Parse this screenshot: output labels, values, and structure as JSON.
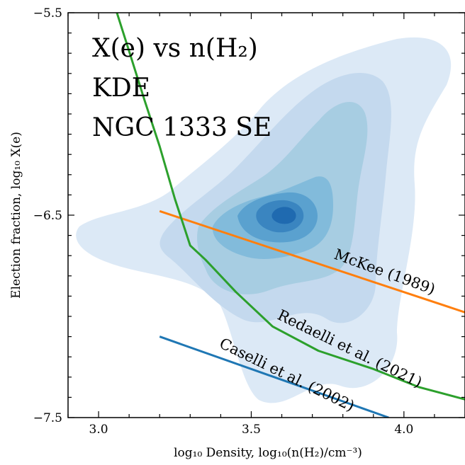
{
  "chart_data": {
    "type": "line",
    "xlabel": "log₁₀ Density, log₁₀(n(H₂)/cm⁻³)",
    "ylabel": "Election fraction, log₁₀ X(e)",
    "xlim": [
      2.9,
      4.2
    ],
    "ylim": [
      -7.5,
      -5.5
    ],
    "x_ticks": [
      3.0,
      3.5,
      4.0
    ],
    "x_tick_labels": [
      "3.0",
      "3.5",
      "4.0"
    ],
    "y_ticks": [
      -5.5,
      -6.5,
      -7.5
    ],
    "y_tick_labels": [
      "−5.5",
      "−6.5",
      "−7.5"
    ],
    "grid": false,
    "annotations": [
      "X(e) vs n(H₂)",
      "KDE",
      "NGC 1333 SE"
    ],
    "series": [
      {
        "name": "McKee (1989)",
        "color": "#ff7f0e",
        "x": [
          3.2,
          4.2
        ],
        "y": [
          -6.48,
          -6.98
        ]
      },
      {
        "name": "Redaelli et al. (2021)",
        "color": "#2ca02c",
        "x": [
          3.06,
          3.1,
          3.15,
          3.2,
          3.25,
          3.3,
          3.35,
          3.45,
          3.57,
          3.72,
          3.9,
          4.05,
          4.2
        ],
        "y": [
          -5.5,
          -5.69,
          -5.93,
          -6.16,
          -6.42,
          -6.65,
          -6.72,
          -6.88,
          -7.05,
          -7.17,
          -7.26,
          -7.35,
          -7.41
        ]
      },
      {
        "name": "Caselli et al. (2002)",
        "color": "#1f77b4",
        "x": [
          3.2,
          3.95
        ],
        "y": [
          -7.1,
          -7.5
        ]
      }
    ],
    "kde": {
      "colormap": "Blues",
      "levels": 6,
      "peak": [
        3.6,
        -6.5
      ]
    }
  }
}
